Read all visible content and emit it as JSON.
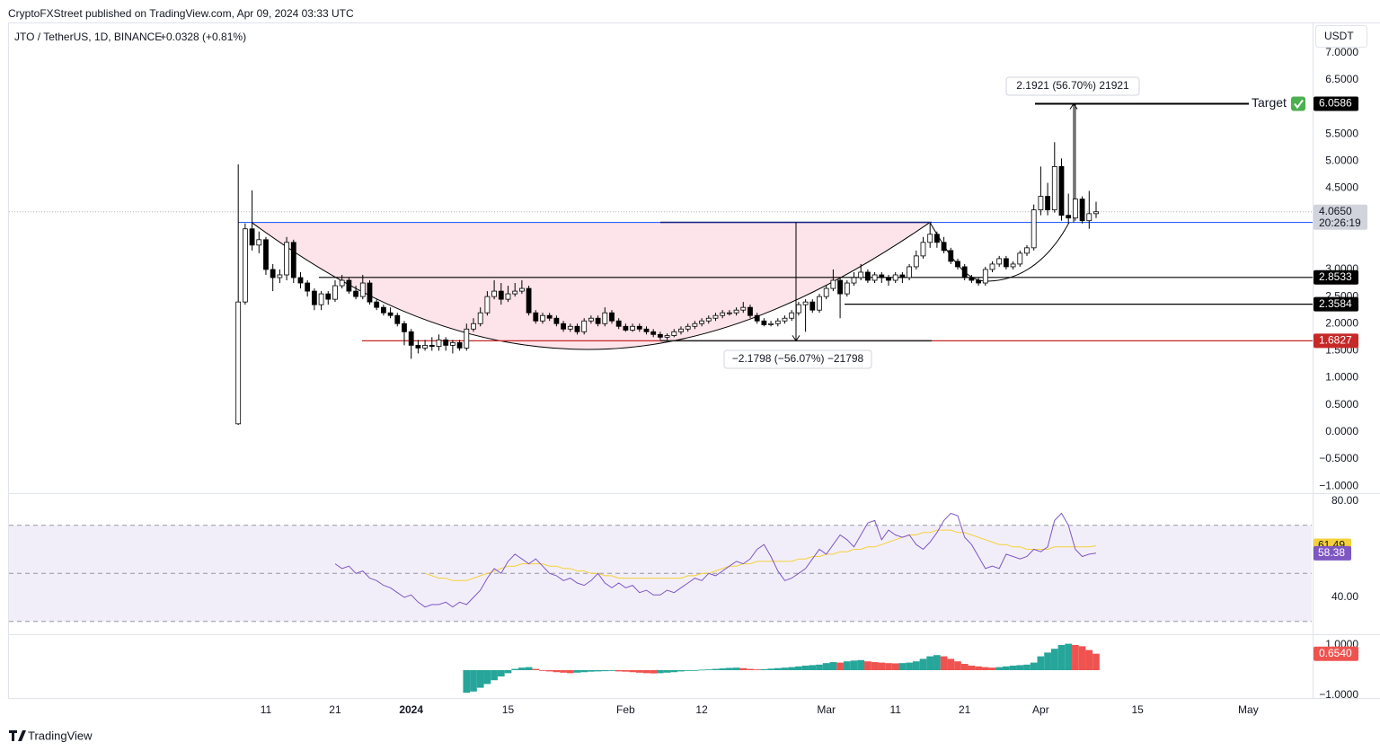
{
  "header": {
    "published": "CryptoFXStreet published on TradingView.com, Apr 09, 2024 03:33 UTC",
    "symbol": "JTO / TetherUS, 1D, BINANCE",
    "change": "+0.0328 (+0.81%)",
    "currency": "USDT"
  },
  "footer": {
    "brand": "TradingView"
  },
  "chart_data": {
    "type": "candlestick",
    "up_color": "#ffffff",
    "down_color": "#000000",
    "outline_color": "#000000",
    "x": [
      0,
      1,
      2,
      3,
      4,
      5,
      6,
      7,
      8,
      9,
      10,
      11,
      12,
      13,
      14,
      15,
      16,
      17,
      18,
      19,
      20,
      21,
      22,
      23,
      24,
      25,
      26,
      27,
      28,
      29,
      30,
      31,
      32,
      33,
      34,
      35,
      36,
      37,
      38,
      39,
      40,
      41,
      42,
      43,
      44,
      45,
      46,
      47,
      48,
      49,
      50,
      51,
      52,
      53,
      54,
      55,
      56,
      57,
      58,
      59,
      60,
      61,
      62,
      63,
      64,
      65,
      66,
      67,
      68,
      69,
      70,
      71,
      72,
      73,
      74,
      75,
      76,
      77,
      78,
      79,
      80,
      81,
      82,
      83,
      84,
      85,
      86,
      87,
      88,
      89,
      90,
      91,
      92,
      93,
      94,
      95,
      96,
      97,
      98,
      99,
      100,
      101,
      102,
      103,
      104,
      105,
      106,
      107,
      108,
      109,
      110,
      111,
      112,
      113,
      114,
      115,
      116,
      117,
      118,
      119,
      120,
      121,
      122,
      123,
      124
    ],
    "candles": [
      [
        0.15,
        4.94,
        0.13,
        2.4
      ],
      [
        2.4,
        3.85,
        2.35,
        3.75
      ],
      [
        3.75,
        4.46,
        3.35,
        3.45
      ],
      [
        3.45,
        3.7,
        3.3,
        3.55
      ],
      [
        3.55,
        3.6,
        2.9,
        3.0
      ],
      [
        3.0,
        3.1,
        2.6,
        2.85
      ],
      [
        2.85,
        3.0,
        2.75,
        2.9
      ],
      [
        2.9,
        3.6,
        2.8,
        3.5
      ],
      [
        3.5,
        3.55,
        2.75,
        2.85
      ],
      [
        2.85,
        2.95,
        2.65,
        2.75
      ],
      [
        2.75,
        2.8,
        2.5,
        2.6
      ],
      [
        2.6,
        2.65,
        2.25,
        2.35
      ],
      [
        2.35,
        2.6,
        2.25,
        2.55
      ],
      [
        2.55,
        2.6,
        2.35,
        2.45
      ],
      [
        2.45,
        2.8,
        2.4,
        2.7
      ],
      [
        2.7,
        2.9,
        2.65,
        2.8
      ],
      [
        2.8,
        2.85,
        2.55,
        2.6
      ],
      [
        2.6,
        2.7,
        2.45,
        2.5
      ],
      [
        2.5,
        2.9,
        2.45,
        2.75
      ],
      [
        2.75,
        2.8,
        2.35,
        2.4
      ],
      [
        2.4,
        2.45,
        2.25,
        2.3
      ],
      [
        2.3,
        2.35,
        2.15,
        2.2
      ],
      [
        2.2,
        2.3,
        2.1,
        2.15
      ],
      [
        2.15,
        2.2,
        1.95,
        2.0
      ],
      [
        2.0,
        2.05,
        1.6,
        1.85
      ],
      [
        1.85,
        1.9,
        1.35,
        1.6
      ],
      [
        1.6,
        1.7,
        1.45,
        1.55
      ],
      [
        1.55,
        1.7,
        1.5,
        1.6
      ],
      [
        1.6,
        1.75,
        1.5,
        1.58
      ],
      [
        1.58,
        1.8,
        1.5,
        1.7
      ],
      [
        1.7,
        1.75,
        1.5,
        1.6
      ],
      [
        1.6,
        1.7,
        1.45,
        1.65
      ],
      [
        1.65,
        1.7,
        1.5,
        1.55
      ],
      [
        1.55,
        2.0,
        1.5,
        1.9
      ],
      [
        1.9,
        2.1,
        1.85,
        2.0
      ],
      [
        2.0,
        2.3,
        1.95,
        2.2
      ],
      [
        2.2,
        2.6,
        2.15,
        2.5
      ],
      [
        2.5,
        2.8,
        2.45,
        2.6
      ],
      [
        2.6,
        2.75,
        2.35,
        2.45
      ],
      [
        2.45,
        2.7,
        2.4,
        2.55
      ],
      [
        2.55,
        2.75,
        2.5,
        2.6
      ],
      [
        2.6,
        2.8,
        2.55,
        2.65
      ],
      [
        2.65,
        2.7,
        2.15,
        2.2
      ],
      [
        2.2,
        2.25,
        2.0,
        2.05
      ],
      [
        2.05,
        2.2,
        2.0,
        2.15
      ],
      [
        2.15,
        2.2,
        2.05,
        2.1
      ],
      [
        2.1,
        2.15,
        1.95,
        2.0
      ],
      [
        2.0,
        2.05,
        1.85,
        1.9
      ],
      [
        1.9,
        2.0,
        1.85,
        1.95
      ],
      [
        1.95,
        2.0,
        1.8,
        1.85
      ],
      [
        1.85,
        2.1,
        1.8,
        2.05
      ],
      [
        2.05,
        2.15,
        2.0,
        2.1
      ],
      [
        2.1,
        2.15,
        1.95,
        2.0
      ],
      [
        2.0,
        2.3,
        1.95,
        2.2
      ],
      [
        2.2,
        2.25,
        2.0,
        2.05
      ],
      [
        2.05,
        2.1,
        1.9,
        1.95
      ],
      [
        1.95,
        2.0,
        1.85,
        1.88
      ],
      [
        1.88,
        2.0,
        1.85,
        1.95
      ],
      [
        1.95,
        2.0,
        1.85,
        1.9
      ],
      [
        1.9,
        1.95,
        1.8,
        1.85
      ],
      [
        1.85,
        1.9,
        1.75,
        1.8
      ],
      [
        1.8,
        1.85,
        1.7,
        1.75
      ],
      [
        1.75,
        1.82,
        1.7,
        1.78
      ],
      [
        1.78,
        1.9,
        1.75,
        1.85
      ],
      [
        1.85,
        1.95,
        1.8,
        1.9
      ],
      [
        1.9,
        2.0,
        1.85,
        1.95
      ],
      [
        1.95,
        2.05,
        1.9,
        2.0
      ],
      [
        2.0,
        2.1,
        1.95,
        2.05
      ],
      [
        2.05,
        2.15,
        2.0,
        2.1
      ],
      [
        2.1,
        2.2,
        2.05,
        2.15
      ],
      [
        2.15,
        2.25,
        2.1,
        2.2
      ],
      [
        2.2,
        2.25,
        2.15,
        2.2
      ],
      [
        2.2,
        2.3,
        2.15,
        2.25
      ],
      [
        2.25,
        2.4,
        2.2,
        2.3
      ],
      [
        2.3,
        2.35,
        2.1,
        2.15
      ],
      [
        2.15,
        2.2,
        2.0,
        2.05
      ],
      [
        2.05,
        2.1,
        1.95,
        1.98
      ],
      [
        1.98,
        2.05,
        1.95,
        2.0
      ],
      [
        2.0,
        2.1,
        1.95,
        2.05
      ],
      [
        2.05,
        2.15,
        2.0,
        2.1
      ],
      [
        2.1,
        2.25,
        2.05,
        2.2
      ],
      [
        2.2,
        2.4,
        2.15,
        2.35
      ],
      [
        2.35,
        2.45,
        1.85,
        2.4
      ],
      [
        2.4,
        2.45,
        2.2,
        2.25
      ],
      [
        2.25,
        2.55,
        2.2,
        2.5
      ],
      [
        2.5,
        2.7,
        2.45,
        2.65
      ],
      [
        2.65,
        3.0,
        2.6,
        2.8
      ],
      [
        2.8,
        2.85,
        2.1,
        2.55
      ],
      [
        2.55,
        2.8,
        2.5,
        2.75
      ],
      [
        2.75,
        2.95,
        2.7,
        2.85
      ],
      [
        2.85,
        3.1,
        2.8,
        2.95
      ],
      [
        2.95,
        3.0,
        2.75,
        2.8
      ],
      [
        2.8,
        2.95,
        2.75,
        2.9
      ],
      [
        2.9,
        2.95,
        2.75,
        2.85
      ],
      [
        2.85,
        2.9,
        2.7,
        2.8
      ],
      [
        2.8,
        2.95,
        2.75,
        2.9
      ],
      [
        2.9,
        2.95,
        2.75,
        2.85
      ],
      [
        2.85,
        3.1,
        2.8,
        3.05
      ],
      [
        3.05,
        3.35,
        3.0,
        3.25
      ],
      [
        3.25,
        3.6,
        3.2,
        3.5
      ],
      [
        3.5,
        3.85,
        3.4,
        3.65
      ],
      [
        3.65,
        3.7,
        3.4,
        3.5
      ],
      [
        3.5,
        3.6,
        3.3,
        3.35
      ],
      [
        3.35,
        3.4,
        3.1,
        3.15
      ],
      [
        3.15,
        3.2,
        3.0,
        3.05
      ],
      [
        3.05,
        3.1,
        2.8,
        2.85
      ],
      [
        2.85,
        2.9,
        2.75,
        2.8
      ],
      [
        2.8,
        2.85,
        2.7,
        2.75
      ],
      [
        2.75,
        3.05,
        2.7,
        3.0
      ],
      [
        3.0,
        3.15,
        2.95,
        3.1
      ],
      [
        3.1,
        3.25,
        3.05,
        3.2
      ],
      [
        3.2,
        3.25,
        3.0,
        3.05
      ],
      [
        3.05,
        3.15,
        3.0,
        3.1
      ],
      [
        3.1,
        3.35,
        3.05,
        3.3
      ],
      [
        3.3,
        3.45,
        3.25,
        3.4
      ],
      [
        3.4,
        4.2,
        3.35,
        4.1
      ],
      [
        4.1,
        4.9,
        4.0,
        4.35
      ],
      [
        4.35,
        4.6,
        4.0,
        4.1
      ],
      [
        4.1,
        5.35,
        4.05,
        4.9
      ],
      [
        4.9,
        5.05,
        3.9,
        4.0
      ],
      [
        4.0,
        4.4,
        3.85,
        3.95
      ],
      [
        3.95,
        6.06,
        3.9,
        4.3
      ],
      [
        4.3,
        4.35,
        3.85,
        3.9
      ],
      [
        3.9,
        4.45,
        3.75,
        4.03
      ],
      [
        4.03,
        4.25,
        3.95,
        4.065
      ]
    ],
    "last_price_label": "4.0650",
    "countdown": "20:26:19",
    "xlim": [
      -33.14,
      155.17
    ],
    "xticks": [
      {
        "value": 4,
        "label": "11"
      },
      {
        "value": 14,
        "label": "21"
      },
      {
        "value": 25,
        "label": "2024"
      },
      {
        "value": 39,
        "label": "15"
      },
      {
        "value": 56,
        "label": "Feb"
      },
      {
        "value": 67,
        "label": "12"
      },
      {
        "value": 85,
        "label": "Mar"
      },
      {
        "value": 95,
        "label": "11"
      },
      {
        "value": 105,
        "label": "21"
      },
      {
        "value": 116,
        "label": "Apr"
      },
      {
        "value": 130,
        "label": "15"
      },
      {
        "value": 146,
        "label": "May"
      }
    ],
    "ylim": [
      -1.13,
      7.56
    ],
    "yticks": [
      {
        "value": 7,
        "label": "7.0000"
      },
      {
        "value": 6.5,
        "label": "6.5000"
      },
      {
        "value": 5.5,
        "label": "5.5000"
      },
      {
        "value": 5,
        "label": "5.0000"
      },
      {
        "value": 4.5,
        "label": "4.5000"
      },
      {
        "value": 3,
        "label": "3.0000"
      },
      {
        "value": 2.5,
        "label": "2.5000"
      },
      {
        "value": 2,
        "label": "2.0000"
      },
      {
        "value": 1.5,
        "label": "1.5000"
      },
      {
        "value": 1,
        "label": "1.0000"
      },
      {
        "value": 0.5,
        "label": "0.5000"
      },
      {
        "value": 0,
        "label": "0.0000"
      },
      {
        "value": -0.5,
        "label": "−0.5000"
      },
      {
        "value": -1,
        "label": "−1.0000"
      }
    ],
    "grid": false,
    "price_levels": [
      {
        "value": 6.0586,
        "color": "#000000"
      },
      {
        "value": 3.8692,
        "color": "#2962ff"
      },
      {
        "value": 2.8533,
        "color": "#000000"
      },
      {
        "value": 2.3584,
        "color": "#000000"
      },
      {
        "value": 1.6827,
        "color": "#c62828"
      }
    ],
    "target_label": "Target",
    "measurements": [
      "2.1921 (56.70%) 21921",
      "−2.1798 (−56.07%) −21798"
    ],
    "rsi": {
      "type": "line",
      "series": [
        {
          "color": "#7e57c2",
          "values": [
            null,
            null,
            null,
            null,
            null,
            null,
            null,
            null,
            null,
            null,
            null,
            null,
            null,
            null,
            54,
            52,
            53,
            50,
            51,
            48,
            47,
            45,
            44,
            42,
            40,
            41,
            38,
            36,
            37,
            37,
            38,
            36,
            38,
            37,
            40,
            43,
            48,
            52,
            50,
            55,
            58,
            56,
            54,
            56,
            53,
            50,
            49,
            47,
            48,
            46,
            45,
            47,
            50,
            46,
            44,
            46,
            44,
            45,
            42,
            43,
            41,
            41,
            43,
            42,
            44,
            46,
            48,
            47,
            50,
            49,
            51,
            53,
            55,
            54,
            56,
            60,
            62,
            57,
            51,
            47,
            48,
            50,
            52,
            56,
            60,
            58,
            62,
            66,
            64,
            61,
            66,
            71,
            72,
            64,
            68,
            66,
            65,
            66,
            62,
            60,
            63,
            67,
            72,
            75,
            74,
            65,
            62,
            57,
            52,
            53,
            52,
            58,
            57,
            56,
            57,
            60,
            59,
            61,
            72,
            75,
            70,
            60,
            57,
            58,
            58.38
          ]
        },
        {
          "color": "#f5d03b",
          "values": [
            null,
            null,
            null,
            null,
            null,
            null,
            null,
            null,
            null,
            null,
            null,
            null,
            null,
            null,
            null,
            null,
            null,
            null,
            null,
            null,
            null,
            null,
            null,
            null,
            null,
            null,
            null,
            50,
            49,
            48,
            48,
            47,
            47,
            47,
            48,
            49,
            50,
            51,
            52,
            53,
            53,
            54,
            54,
            54,
            54,
            53,
            53,
            52,
            52,
            51,
            51,
            50,
            50,
            49,
            49,
            48,
            48,
            48,
            48,
            48,
            48,
            48,
            48,
            48,
            48,
            49,
            49,
            50,
            50,
            51,
            52,
            53,
            53,
            54,
            54,
            55,
            55,
            55,
            55,
            55,
            55,
            56,
            56,
            57,
            57,
            58,
            58,
            59,
            59,
            60,
            60,
            61,
            61,
            62,
            63,
            64,
            65,
            66,
            66,
            67,
            67,
            68,
            68,
            68,
            67,
            67,
            66,
            65,
            64,
            63,
            62,
            62,
            61,
            61,
            60,
            60,
            60,
            60,
            61,
            61,
            61,
            61,
            61,
            61,
            61.49
          ]
        }
      ],
      "ylim": [
        24.67,
        83.0
      ],
      "yticks": [
        {
          "value": 80,
          "label": "80.00"
        },
        {
          "value": 40,
          "label": "40.00"
        }
      ],
      "levels": [
        70,
        50,
        30
      ]
    },
    "histogram": {
      "type": "histogram",
      "rising_color": "#26a69a",
      "falling_color": "#ef5350",
      "values": [
        null,
        null,
        null,
        null,
        null,
        null,
        null,
        null,
        null,
        null,
        null,
        null,
        null,
        null,
        null,
        null,
        null,
        null,
        null,
        null,
        null,
        null,
        null,
        null,
        null,
        null,
        null,
        null,
        null,
        null,
        null,
        null,
        null,
        -0.9,
        -0.85,
        -0.7,
        -0.55,
        -0.4,
        -0.25,
        -0.12,
        0.05,
        0.1,
        0.12,
        0.05,
        -0.02,
        -0.05,
        -0.08,
        -0.1,
        -0.12,
        -0.1,
        -0.08,
        -0.06,
        -0.05,
        -0.04,
        -0.03,
        -0.05,
        -0.06,
        -0.08,
        -0.1,
        -0.12,
        -0.13,
        -0.12,
        -0.1,
        -0.08,
        -0.05,
        -0.03,
        0.0,
        0.02,
        0.03,
        0.05,
        0.07,
        0.09,
        0.1,
        0.08,
        0.05,
        0.03,
        0.04,
        0.06,
        0.08,
        0.1,
        0.12,
        0.15,
        0.18,
        0.2,
        0.22,
        0.28,
        0.32,
        0.3,
        0.35,
        0.38,
        0.4,
        0.35,
        0.32,
        0.3,
        0.28,
        0.27,
        0.28,
        0.3,
        0.35,
        0.45,
        0.55,
        0.6,
        0.55,
        0.45,
        0.35,
        0.25,
        0.18,
        0.15,
        0.12,
        0.1,
        0.12,
        0.15,
        0.18,
        0.2,
        0.22,
        0.3,
        0.55,
        0.7,
        0.85,
        1.0,
        1.05,
        1.0,
        0.95,
        0.8,
        0.654
      ],
      "last_value_label": "0.6540",
      "ylim": [
        -1.107,
        1.393
      ],
      "yticks": [
        {
          "value": 1,
          "label": "1.0000"
        },
        {
          "value": -1,
          "label": "−1.0000"
        }
      ]
    }
  }
}
